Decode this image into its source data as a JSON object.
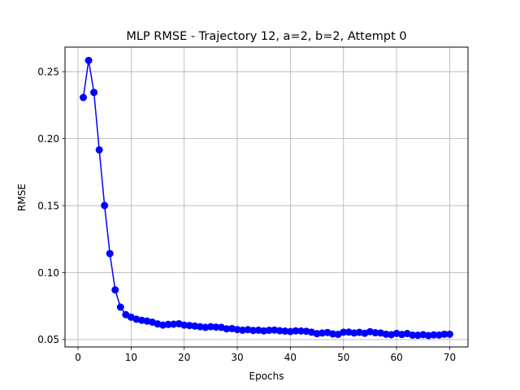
{
  "chart_data": {
    "type": "line",
    "title": "MLP RMSE - Trajectory 12, a=2, b=2, Attempt 0",
    "xlabel": "Epochs",
    "ylabel": "RMSE",
    "xlim": [
      -2.45,
      73.45
    ],
    "ylim": [
      0.0445,
      0.2683
    ],
    "xticks": [
      0,
      10,
      20,
      30,
      40,
      50,
      60,
      70
    ],
    "yticks": [
      0.05,
      0.1,
      0.15,
      0.2,
      0.25
    ],
    "xtick_labels": [
      "0",
      "10",
      "20",
      "30",
      "40",
      "50",
      "60",
      "70"
    ],
    "ytick_labels": [
      "0.05",
      "0.10",
      "0.15",
      "0.20",
      "0.25"
    ],
    "grid": true,
    "legend": false,
    "line_color": "#0000ff",
    "marker_color": "#0000ff",
    "series": [
      {
        "x": [
          1,
          2,
          3,
          4,
          5,
          6,
          7,
          8,
          9,
          10,
          11,
          12,
          13,
          14,
          15,
          16,
          17,
          18,
          19,
          20,
          21,
          22,
          23,
          24,
          25,
          26,
          27,
          28,
          29,
          30,
          31,
          32,
          33,
          34,
          35,
          36,
          37,
          38,
          39,
          40,
          41,
          42,
          43,
          44,
          45,
          46,
          47,
          48,
          49,
          50,
          51,
          52,
          53,
          54,
          55,
          56,
          57,
          58,
          59,
          60,
          61,
          62,
          63,
          64,
          65,
          66,
          67,
          68,
          69,
          70
        ],
        "values": [
          0.2307,
          0.2584,
          0.2345,
          0.1916,
          0.1501,
          0.1142,
          0.0871,
          0.0742,
          0.0686,
          0.0667,
          0.0652,
          0.0644,
          0.0638,
          0.063,
          0.0617,
          0.0608,
          0.0613,
          0.0615,
          0.0618,
          0.0608,
          0.0605,
          0.0601,
          0.0596,
          0.0591,
          0.0596,
          0.0593,
          0.0591,
          0.058,
          0.0582,
          0.0575,
          0.057,
          0.0574,
          0.0568,
          0.057,
          0.0565,
          0.0569,
          0.0571,
          0.0566,
          0.0563,
          0.056,
          0.0565,
          0.0564,
          0.0562,
          0.0555,
          0.0544,
          0.0549,
          0.0553,
          0.0542,
          0.0539,
          0.0555,
          0.0556,
          0.0549,
          0.0554,
          0.0547,
          0.0559,
          0.0551,
          0.0549,
          0.054,
          0.0536,
          0.0546,
          0.0538,
          0.0545,
          0.0533,
          0.0532,
          0.0537,
          0.053,
          0.0535,
          0.0534,
          0.054,
          0.054
        ]
      }
    ]
  }
}
